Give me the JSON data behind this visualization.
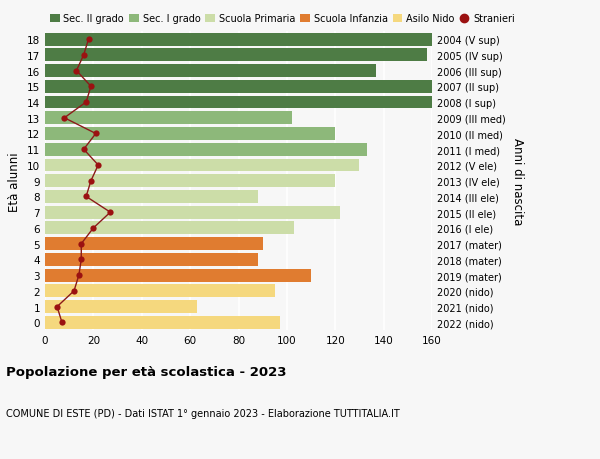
{
  "ages": [
    0,
    1,
    2,
    3,
    4,
    5,
    6,
    7,
    8,
    9,
    10,
    11,
    12,
    13,
    14,
    15,
    16,
    17,
    18
  ],
  "right_labels": [
    "2022 (nido)",
    "2021 (nido)",
    "2020 (nido)",
    "2019 (mater)",
    "2018 (mater)",
    "2017 (mater)",
    "2016 (I ele)",
    "2015 (II ele)",
    "2014 (III ele)",
    "2013 (IV ele)",
    "2012 (V ele)",
    "2011 (I med)",
    "2010 (II med)",
    "2009 (III med)",
    "2008 (I sup)",
    "2007 (II sup)",
    "2006 (III sup)",
    "2005 (IV sup)",
    "2004 (V sup)"
  ],
  "bar_values": [
    97,
    63,
    95,
    110,
    88,
    90,
    103,
    122,
    88,
    120,
    130,
    133,
    120,
    102,
    160,
    160,
    137,
    158,
    160
  ],
  "bar_colors": [
    "#f5d87e",
    "#f5d87e",
    "#f5d87e",
    "#e07c30",
    "#e07c30",
    "#e07c30",
    "#ccdda8",
    "#ccdda8",
    "#ccdda8",
    "#ccdda8",
    "#ccdda8",
    "#8db87a",
    "#8db87a",
    "#8db87a",
    "#4e7c45",
    "#4e7c45",
    "#4e7c45",
    "#4e7c45",
    "#4e7c45"
  ],
  "stranieri_values": [
    7,
    5,
    12,
    14,
    15,
    15,
    20,
    27,
    17,
    19,
    22,
    16,
    21,
    8,
    17,
    19,
    13,
    16,
    18
  ],
  "title": "Popolazione per età scolastica - 2023",
  "subtitle": "COMUNE DI ESTE (PD) - Dati ISTAT 1° gennaio 2023 - Elaborazione TUTTITALIA.IT",
  "ylabel": "Età alunni",
  "right_ylabel": "Anni di nascita",
  "xlim": [
    0,
    160
  ],
  "xticks": [
    0,
    20,
    40,
    60,
    80,
    100,
    120,
    140,
    160
  ],
  "legend_labels": [
    "Sec. II grado",
    "Sec. I grado",
    "Scuola Primaria",
    "Scuola Infanzia",
    "Asilo Nido",
    "Stranieri"
  ],
  "legend_colors": [
    "#4e7c45",
    "#8db87a",
    "#ccdda8",
    "#e07c30",
    "#f5d87e",
    "#8b0000"
  ],
  "bg_color": "#f7f7f7",
  "grid_color": "#ffffff",
  "bar_height": 0.82
}
